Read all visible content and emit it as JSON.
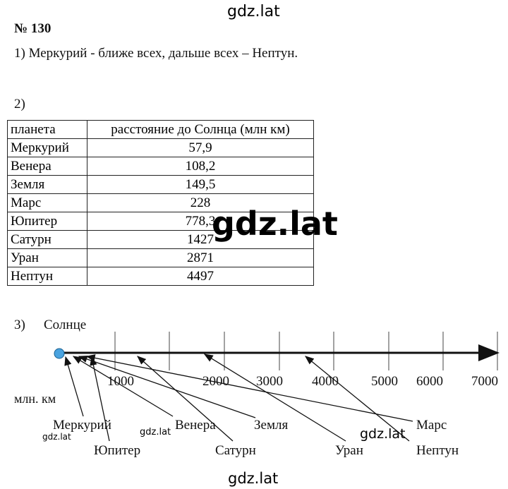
{
  "watermarks": [
    "gdz.lat",
    "gdz.lat",
    "gdz.lat",
    "gdz.lat",
    "gdz.lat",
    "gdz.lat"
  ],
  "title": "№ 130",
  "part1": "1) Меркурий - ближе всех, дальше всех – Нептун.",
  "part2": {
    "label": "2)",
    "table": {
      "header": [
        "планета",
        "расстояние до Солнца (млн км)"
      ],
      "rows": [
        [
          "Меркурий",
          "57,9"
        ],
        [
          "Венера",
          "108,2"
        ],
        [
          "Земля",
          "149,5"
        ],
        [
          "Марс",
          "228"
        ],
        [
          "Юпитер",
          "778,3"
        ],
        [
          "Сатурн",
          "1427"
        ],
        [
          "Уран",
          "2871"
        ],
        [
          "Нептун",
          "4497"
        ]
      ]
    }
  },
  "part3": {
    "label": "3)",
    "sun": "Солнце",
    "unit": "млн. км",
    "axis_labels": [
      "1000",
      "2000",
      "3000",
      "4000",
      "5000",
      "6000",
      "7000"
    ],
    "planets": [
      "Меркурий",
      "Венера",
      "Земля",
      "Марс",
      "Юпитер",
      "Сатурн",
      "Уран",
      "Нептун"
    ]
  }
}
